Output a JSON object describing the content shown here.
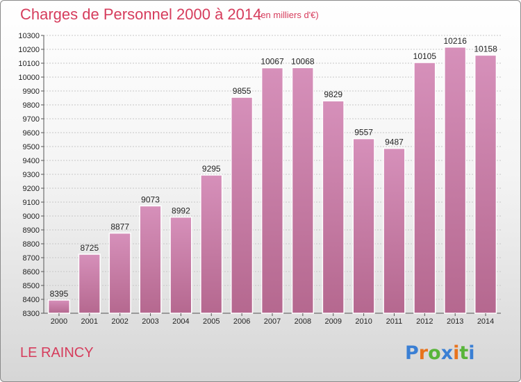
{
  "chart_data": {
    "type": "bar",
    "title": "Charges de Personnel 2000 à 2014",
    "subtitle": "(en milliers d'€)",
    "categories": [
      "2000",
      "2001",
      "2002",
      "2003",
      "2004",
      "2005",
      "2006",
      "2007",
      "2008",
      "2009",
      "2010",
      "2011",
      "2012",
      "2013",
      "2014"
    ],
    "values": [
      8395,
      8725,
      8877,
      9073,
      8992,
      9295,
      9855,
      10067,
      10068,
      9829,
      9557,
      9487,
      10105,
      10216,
      10158
    ],
    "ylim": [
      8300,
      10300
    ],
    "ytick_step": 100,
    "grid": true,
    "bar_color": "#d690ba",
    "bar_color_dark": "#b5688f",
    "xlabel": "",
    "ylabel": ""
  },
  "commune": "LE RAINCY",
  "logo": {
    "text": "Proxiti",
    "letter_colors": [
      "#3a7fd4",
      "#e8731c",
      "#58b53a",
      "#3a7fd4",
      "#e8731c",
      "#58b53a",
      "#3a7fd4"
    ]
  },
  "colors": {
    "title": "#d63c5c",
    "grid": "#c6c6c6",
    "axis": "#555555"
  }
}
